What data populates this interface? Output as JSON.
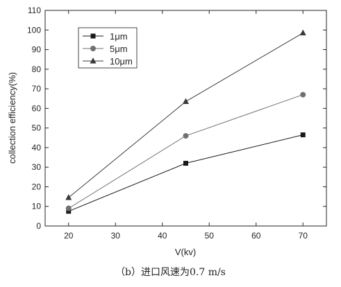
{
  "chart_data": {
    "type": "line",
    "xlabel": "V(kv)",
    "ylabel": "collection efficiency(%)",
    "xlim": [
      15,
      75
    ],
    "ylim": [
      0,
      110
    ],
    "xticks": [
      20,
      30,
      40,
      50,
      60,
      70
    ],
    "yticks": [
      0,
      10,
      20,
      30,
      40,
      50,
      60,
      70,
      80,
      90,
      100,
      110
    ],
    "x": [
      20,
      45,
      70
    ],
    "series": [
      {
        "name": "1μm",
        "marker": "square",
        "color": "#1a1a1a",
        "values": [
          7.5,
          32,
          46.5
        ]
      },
      {
        "name": "5μm",
        "marker": "circle",
        "color": "#707070",
        "values": [
          9,
          46,
          67
        ]
      },
      {
        "name": "10μm",
        "marker": "triangle",
        "color": "#3a3a3a",
        "values": [
          14.5,
          63.5,
          98.5
        ]
      }
    ],
    "legend_position": "top-left",
    "grid": false
  },
  "caption": "（b）进口风速为0.7 m/s"
}
